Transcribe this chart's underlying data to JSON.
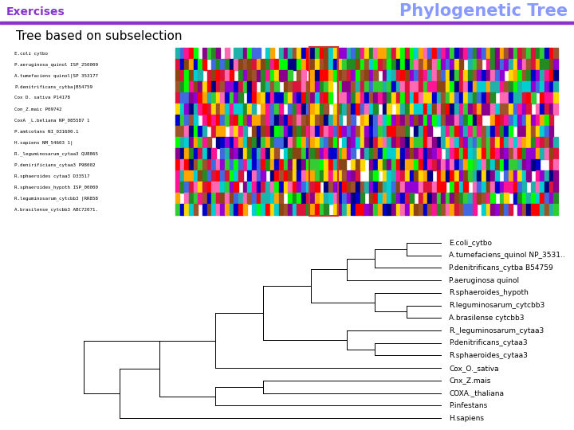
{
  "title": "Phylogenetic Tree",
  "subtitle": "Tree based on subselection",
  "header_left": "Exercises",
  "header_color": "#8833cc",
  "title_color": "#8899ff",
  "header_bar_color": "#8833cc",
  "bg_color": "#ffffff",
  "taxa": [
    "E.coli_cytbo",
    "A.tumefaciens_quinol NP_3531..",
    "P.denitrificans_cytba B54759",
    "P.aeruginosa quinol",
    "R.sphaeroides_hypoth",
    "R.leguminosarum_cytcbb3",
    "A.brasilense cytcbb3",
    "R._leguminosarum_cytaa3",
    "P.denitrificans_cytaa3",
    "R.sphaeroides_cytaa3",
    "Cox_O._sativa",
    "Cnx_Z.mais",
    "COXA._thaliana",
    "P.infestans",
    "H.sapiens"
  ],
  "seq_labels": [
    "E.coli cytbo",
    "P.aeruginosa_quinol ISP_250009",
    "A.tumefaciens quinol|SP 353177",
    "P.denitrificans_cytba|B54759",
    "Cox D. sativa P14178",
    "Con_Z.maic P09742",
    "CoxA _L.beliana NP_085587 1",
    "P.amtcotans NI_031600.1",
    "H.sapiens NM_54603 1|",
    "R._leguminosarum_cytaa3 QU8865",
    "P.denirificians_cytaa3 P98002",
    "R.sphaeroides cytaa3 D33517",
    "R.sphaeroides_hypoth ISP_00000",
    "R.leguminosarum_cytcbb3 |RR858",
    "A.brasilense_cytcbb3 ABC72071."
  ],
  "tree_line_color": "#000000",
  "selection_box_color": "#cc3333"
}
